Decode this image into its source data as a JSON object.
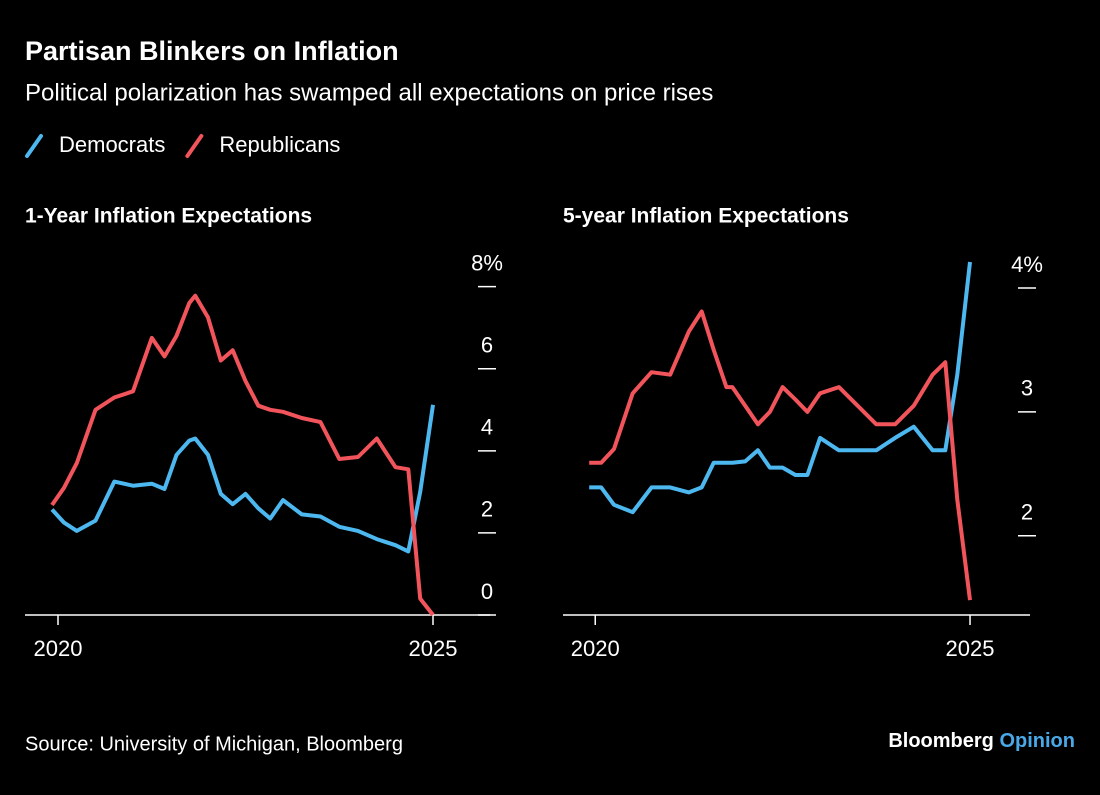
{
  "title": "Partisan Blinkers on Inflation",
  "subtitle": "Political polarization has swamped all expectations on price rises",
  "source": "Source: University of Michigan, Bloomberg",
  "brand": {
    "name": "Bloomberg",
    "product": "Opinion"
  },
  "chart_data": [
    {
      "type": "line",
      "title": "1-Year Inflation Expectations",
      "x": [
        2019.92,
        2020.08,
        2020.25,
        2020.5,
        2020.75,
        2021.0,
        2021.25,
        2021.42,
        2021.58,
        2021.75,
        2021.83,
        2022.0,
        2022.17,
        2022.33,
        2022.5,
        2022.67,
        2022.83,
        2023.0,
        2023.25,
        2023.5,
        2023.75,
        2024.0,
        2024.25,
        2024.5,
        2024.67,
        2024.83,
        2025.0
      ],
      "series": [
        {
          "name": "Democrats",
          "color": "#4db8f0",
          "values": [
            2.57,
            2.25,
            2.05,
            2.3,
            3.25,
            3.15,
            3.2,
            3.07,
            3.9,
            4.25,
            4.3,
            3.9,
            2.95,
            2.7,
            2.95,
            2.6,
            2.35,
            2.8,
            2.45,
            2.4,
            2.15,
            2.05,
            1.85,
            1.7,
            1.55,
            3.0,
            5.12
          ]
        },
        {
          "name": "Republicans",
          "color": "#f2545b",
          "values": [
            2.68,
            3.1,
            3.7,
            5.0,
            5.3,
            5.45,
            6.75,
            6.3,
            6.8,
            7.6,
            7.78,
            7.25,
            6.2,
            6.45,
            5.7,
            5.1,
            5.0,
            4.95,
            4.8,
            4.7,
            3.8,
            3.85,
            4.3,
            3.6,
            3.55,
            0.4,
            0.0
          ]
        }
      ],
      "xlim": [
        2019.56,
        2025.76
      ],
      "xticks": [
        2020,
        2025
      ],
      "ylim": [
        0,
        8.6
      ],
      "yticks": [
        0,
        2,
        4,
        6,
        {
          "value": 8,
          "label": "8%"
        }
      ]
    },
    {
      "type": "line",
      "title": "5-year Inflation Expectations",
      "x": [
        2019.92,
        2020.08,
        2020.25,
        2020.5,
        2020.75,
        2021.0,
        2021.25,
        2021.42,
        2021.58,
        2021.75,
        2021.83,
        2022.0,
        2022.17,
        2022.33,
        2022.5,
        2022.67,
        2022.83,
        2023.0,
        2023.25,
        2023.5,
        2023.75,
        2024.0,
        2024.25,
        2024.5,
        2024.67,
        2024.83,
        2025.0
      ],
      "series": [
        {
          "name": "Democrats",
          "color": "#4db8f0",
          "values": [
            2.39,
            2.39,
            2.25,
            2.19,
            2.39,
            2.39,
            2.35,
            2.39,
            2.59,
            2.59,
            2.59,
            2.6,
            2.69,
            2.55,
            2.55,
            2.49,
            2.49,
            2.79,
            2.69,
            2.69,
            2.69,
            2.79,
            2.88,
            2.69,
            2.69,
            3.3,
            4.21
          ]
        },
        {
          "name": "Republicans",
          "color": "#f2545b",
          "values": [
            2.59,
            2.59,
            2.7,
            3.15,
            3.32,
            3.3,
            3.65,
            3.81,
            3.5,
            3.2,
            3.2,
            3.05,
            2.9,
            3.0,
            3.2,
            3.1,
            3.0,
            3.15,
            3.2,
            3.05,
            2.9,
            2.9,
            3.05,
            3.3,
            3.4,
            2.29,
            1.48
          ]
        }
      ],
      "xlim": [
        2019.57,
        2025.8
      ],
      "xticks": [
        2020,
        2025
      ],
      "ylim": [
        1.36,
        4.21
      ],
      "yticks": [
        2,
        3,
        {
          "value": 4,
          "label": "4%"
        }
      ]
    }
  ]
}
